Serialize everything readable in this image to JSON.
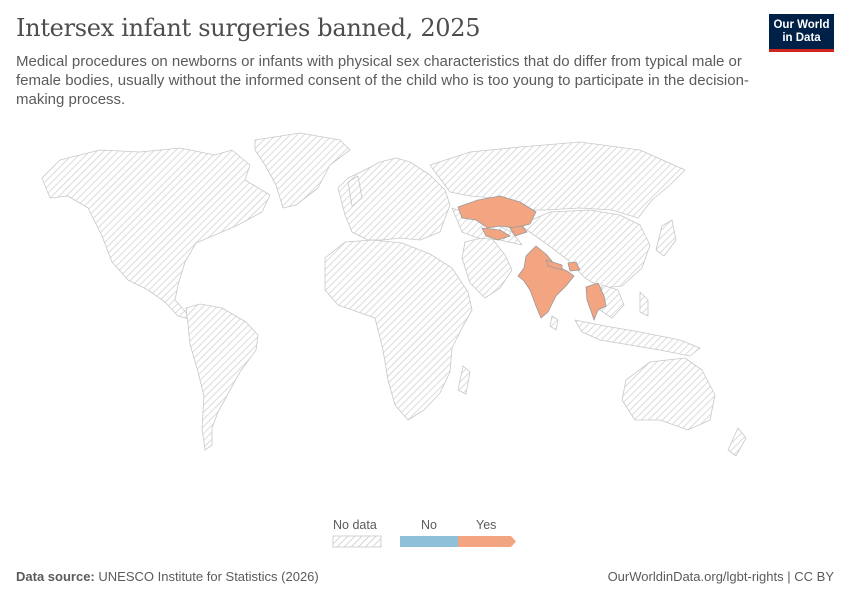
{
  "header": {
    "title": "Intersex infant surgeries banned, 2025",
    "subtitle": "Medical procedures on newborns or infants with physical sex characteristics that do differ from typical male or female bodies, usually without the informed consent of the child who is too young to participate in the decision-making process.",
    "logo_line1": "Our World",
    "logo_line2": "in Data"
  },
  "legend": {
    "no_data_label": "No data",
    "no_label": "No",
    "yes_label": "Yes",
    "no_color": "#8ec0da",
    "yes_color": "#f3a481"
  },
  "map": {
    "highlighted_countries": [
      "Kazakhstan",
      "Uzbekistan",
      "Kyrgyzstan",
      "India",
      "Nepal",
      "Bhutan",
      "Thailand"
    ],
    "highlight_value": "Yes",
    "other_countries_value": "No data"
  },
  "footer": {
    "source_label": "Data source:",
    "source_text": "UNESCO Institute for Statistics (2026)",
    "link": "OurWorldinData.org/lgbt-rights",
    "license": "CC BY"
  }
}
